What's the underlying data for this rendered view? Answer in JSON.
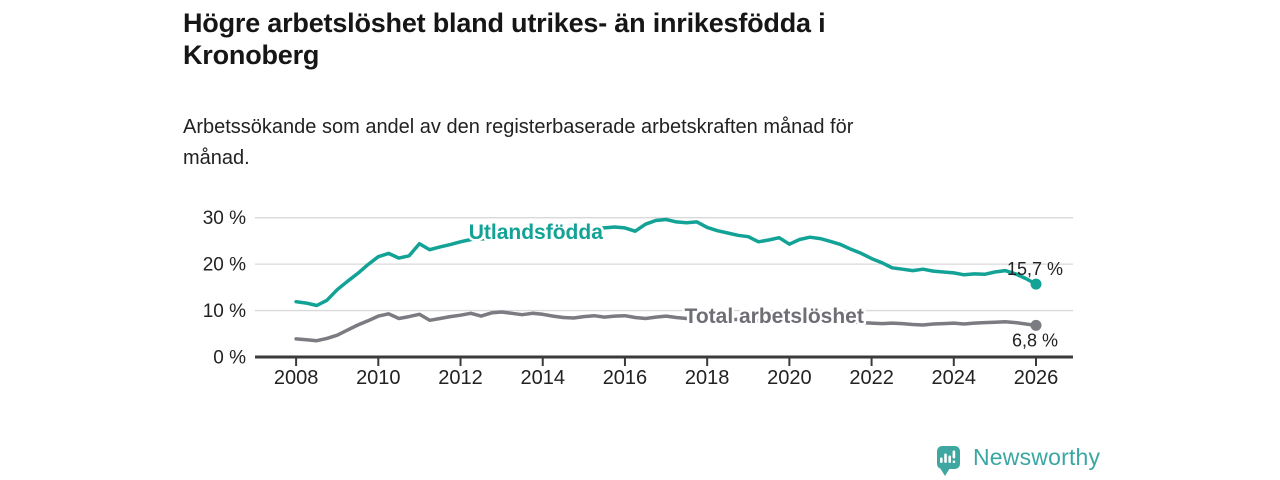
{
  "header": {
    "title_lines": [
      "Högre arbetslöshet bland utrikes- än inrikesfödda i",
      "Kronoberg"
    ],
    "subtitle_lines": [
      "Arbetssökande som andel av den registerbaserade arbetskraften månad för",
      "månad."
    ]
  },
  "footer": {
    "brand": "Newsworthy",
    "brand_color": "#3aa7a3",
    "logo_icon": "bar-chart-pin-icon"
  },
  "chart_data": {
    "type": "line",
    "title": "Högre arbetslöshet bland utrikes- än inrikesfödda i Kronoberg",
    "subtitle": "Arbetssökande som andel av den registerbaserade arbetskraften månad för månad.",
    "unit": "%",
    "grid": "horizontal-only",
    "legend": "inline-labels",
    "xlim": [
      2007,
      2026.9
    ],
    "ylim": [
      0,
      32
    ],
    "x_ticks": [
      {
        "value": 2008,
        "label": "2008"
      },
      {
        "value": 2010,
        "label": "2010"
      },
      {
        "value": 2012,
        "label": "2012"
      },
      {
        "value": 2014,
        "label": "2014"
      },
      {
        "value": 2016,
        "label": "2016"
      },
      {
        "value": 2018,
        "label": "2018"
      },
      {
        "value": 2020,
        "label": "2020"
      },
      {
        "value": 2022,
        "label": "2022"
      },
      {
        "value": 2024,
        "label": "2024"
      },
      {
        "value": 2026,
        "label": "2026"
      }
    ],
    "y_ticks": [
      {
        "value": 0,
        "label": "0 %"
      },
      {
        "value": 10,
        "label": "10 %"
      },
      {
        "value": 20,
        "label": "20 %"
      },
      {
        "value": 30,
        "label": "30 %"
      }
    ],
    "series": [
      {
        "id": "utlandsfodda",
        "name": "Utlandsfödda",
        "color": "#13a296",
        "label_color": "#13a296",
        "end_label": "15,7 %",
        "end_label_pos": "above-right",
        "inline_label": {
          "x": 2012.2,
          "y": 25.4
        },
        "x": [
          2008.0,
          2008.25,
          2008.5,
          2008.75,
          2009.0,
          2009.25,
          2009.5,
          2009.75,
          2010.0,
          2010.25,
          2010.5,
          2010.75,
          2011.0,
          2011.25,
          2011.5,
          2011.75,
          2012.0,
          2012.25,
          2012.5,
          2012.75,
          2013.0,
          2013.25,
          2013.5,
          2013.75,
          2014.0,
          2014.25,
          2014.5,
          2014.75,
          2015.0,
          2015.25,
          2015.5,
          2015.75,
          2016.0,
          2016.25,
          2016.5,
          2016.75,
          2017.0,
          2017.25,
          2017.5,
          2017.75,
          2018.0,
          2018.25,
          2018.5,
          2018.75,
          2019.0,
          2019.25,
          2019.5,
          2019.75,
          2020.0,
          2020.25,
          2020.5,
          2020.75,
          2021.0,
          2021.25,
          2021.5,
          2021.75,
          2022.0,
          2022.25,
          2022.5,
          2022.75,
          2023.0,
          2023.25,
          2023.5,
          2023.75,
          2024.0,
          2024.25,
          2024.5,
          2024.75,
          2025.0,
          2025.25,
          2025.5,
          2025.75,
          2026.0
        ],
        "values": [
          11.9,
          11.6,
          11.1,
          12.2,
          14.5,
          16.3,
          18.0,
          19.9,
          21.6,
          22.3,
          21.3,
          21.8,
          24.4,
          23.1,
          23.7,
          24.2,
          24.8,
          25.3,
          25.4,
          25.6,
          25.9,
          26.1,
          26.3,
          26.5,
          26.7,
          26.9,
          27.1,
          27.3,
          27.5,
          27.6,
          27.8,
          28.0,
          27.8,
          27.1,
          28.6,
          29.4,
          29.6,
          29.1,
          28.9,
          29.1,
          27.9,
          27.2,
          26.7,
          26.2,
          25.9,
          24.8,
          25.2,
          25.7,
          24.3,
          25.3,
          25.8,
          25.5,
          24.9,
          24.2,
          23.2,
          22.3,
          21.2,
          20.3,
          19.2,
          18.9,
          18.6,
          18.9,
          18.5,
          18.3,
          18.1,
          17.7,
          17.9,
          17.8,
          18.3,
          18.6,
          17.9,
          16.9,
          15.7
        ]
      },
      {
        "id": "total-arbetsloshet",
        "name": "Total arbetslöshet",
        "color": "#7b7b82",
        "label_color": "#6e6e75",
        "end_label": "6,8 %",
        "end_label_pos": "below-right",
        "inline_label": {
          "x": 2017.45,
          "y": 7.3
        },
        "x": [
          2008.0,
          2008.25,
          2008.5,
          2008.75,
          2009.0,
          2009.25,
          2009.5,
          2009.75,
          2010.0,
          2010.25,
          2010.5,
          2010.75,
          2011.0,
          2011.25,
          2011.5,
          2011.75,
          2012.0,
          2012.25,
          2012.5,
          2012.75,
          2013.0,
          2013.25,
          2013.5,
          2013.75,
          2014.0,
          2014.25,
          2014.5,
          2014.75,
          2015.0,
          2015.25,
          2015.5,
          2015.75,
          2016.0,
          2016.25,
          2016.5,
          2016.75,
          2017.0,
          2017.25,
          2017.5,
          2017.75,
          2018.0,
          2018.25,
          2018.5,
          2018.75,
          2019.0,
          2019.25,
          2019.5,
          2019.75,
          2020.0,
          2020.25,
          2020.5,
          2020.75,
          2021.0,
          2021.25,
          2021.5,
          2021.75,
          2022.0,
          2022.25,
          2022.5,
          2022.75,
          2023.0,
          2023.25,
          2023.5,
          2023.75,
          2024.0,
          2024.25,
          2024.5,
          2024.75,
          2025.0,
          2025.25,
          2025.5,
          2025.75,
          2026.0
        ],
        "values": [
          3.9,
          3.7,
          3.5,
          4.0,
          4.7,
          5.8,
          6.9,
          7.8,
          8.8,
          9.3,
          8.3,
          8.7,
          9.2,
          7.9,
          8.3,
          8.7,
          9.0,
          9.4,
          8.8,
          9.5,
          9.7,
          9.4,
          9.1,
          9.4,
          9.2,
          8.8,
          8.5,
          8.4,
          8.7,
          8.9,
          8.6,
          8.8,
          8.9,
          8.5,
          8.3,
          8.6,
          8.8,
          8.5,
          8.3,
          8.4,
          8.3,
          8.2,
          8.0,
          8.1,
          7.9,
          7.8,
          7.7,
          7.8,
          8.0,
          8.3,
          8.4,
          8.2,
          8.0,
          7.8,
          7.6,
          7.4,
          7.3,
          7.2,
          7.3,
          7.2,
          7.0,
          6.9,
          7.1,
          7.2,
          7.3,
          7.1,
          7.3,
          7.4,
          7.5,
          7.6,
          7.4,
          7.1,
          6.8
        ]
      }
    ]
  }
}
